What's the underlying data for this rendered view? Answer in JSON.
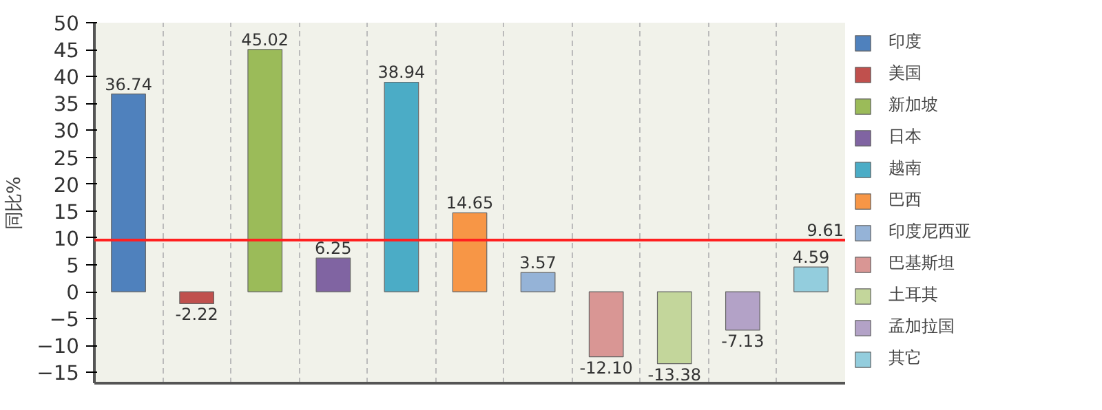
{
  "chart_data": {
    "type": "bar",
    "ylabel": "同比%",
    "categories": [
      null,
      null,
      null,
      null,
      null,
      null,
      null,
      null,
      null,
      null,
      null
    ],
    "series": [
      {
        "name": "印度",
        "color": "#4f81bd",
        "values": [
          36.74,
          null,
          null,
          null,
          null,
          null,
          null,
          null,
          null,
          null,
          null
        ]
      },
      {
        "name": "美国",
        "color": "#c0504d",
        "values": [
          null,
          -2.22,
          null,
          null,
          null,
          null,
          null,
          null,
          null,
          null,
          null
        ]
      },
      {
        "name": "新加坡",
        "color": "#9bbb59",
        "values": [
          null,
          null,
          45.02,
          null,
          null,
          null,
          null,
          null,
          null,
          null,
          null
        ]
      },
      {
        "name": "日本",
        "color": "#8064a2",
        "values": [
          null,
          null,
          null,
          6.25,
          null,
          null,
          null,
          null,
          null,
          null,
          null
        ]
      },
      {
        "name": "越南",
        "color": "#4bacc6",
        "values": [
          null,
          null,
          null,
          null,
          38.94,
          null,
          null,
          null,
          null,
          null,
          null
        ]
      },
      {
        "name": "巴西",
        "color": "#f79646",
        "values": [
          null,
          null,
          null,
          null,
          null,
          14.65,
          null,
          null,
          null,
          null,
          null
        ]
      },
      {
        "name": "印度尼西亚",
        "color": "#95b3d7",
        "values": [
          null,
          null,
          null,
          null,
          null,
          null,
          3.57,
          null,
          null,
          null,
          null
        ]
      },
      {
        "name": "巴基斯坦",
        "color": "#d99694",
        "values": [
          null,
          null,
          null,
          null,
          null,
          null,
          null,
          -12.1,
          null,
          null,
          null
        ]
      },
      {
        "name": "土耳其",
        "color": "#c3d69b",
        "values": [
          null,
          null,
          null,
          null,
          null,
          null,
          null,
          null,
          -13.38,
          null,
          null
        ]
      },
      {
        "name": "孟加拉国",
        "color": "#b3a2c7",
        "values": [
          null,
          null,
          null,
          null,
          null,
          null,
          null,
          null,
          null,
          -7.13,
          null
        ]
      },
      {
        "name": "其它",
        "color": "#93cddd",
        "values": [
          null,
          null,
          null,
          null,
          null,
          null,
          null,
          null,
          null,
          null,
          4.59
        ]
      }
    ],
    "ylim": [
      -17,
      50
    ],
    "yticks": [
      -15,
      -10,
      -5,
      0,
      5,
      10,
      15,
      20,
      25,
      30,
      35,
      40,
      45,
      50
    ],
    "ref_lines": [
      {
        "axis": "y",
        "value": 9.61,
        "label": "9.61",
        "color": "#ff2020"
      }
    ],
    "value_labels": [
      "36.74",
      "-2.22",
      "45.02",
      "6.25",
      "38.94",
      "14.65",
      "3.57",
      "-12.10",
      "-13.38",
      "-7.13",
      "4.59"
    ],
    "grid": "x",
    "legend": "right",
    "tick_labels": "y"
  }
}
